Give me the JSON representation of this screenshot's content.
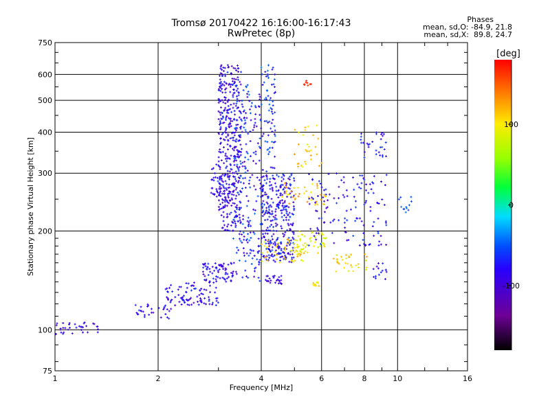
{
  "title": "Tromsø 20170422 16:16:00-16:17:43",
  "subtitle": "RwPretec (8p)",
  "stats": {
    "heading": "Phases",
    "line_o": "mean, sd,O: -84.9, 21.8",
    "line_x": "mean, sd,X:  89.8, 24.7"
  },
  "chart_data": {
    "type": "scatter",
    "title": "Tromsø 20170422 16:16:00-16:17:43",
    "subtitle": "RwPretec (8p)",
    "xlabel": "Frequency [MHz]",
    "ylabel": "Stationary phase Virtual Height [km]",
    "x_scale": "log2",
    "y_scale": "log",
    "xlim": [
      1,
      16
    ],
    "ylim": [
      75,
      750
    ],
    "x_ticks": [
      "1",
      "2",
      "4",
      "6",
      "8",
      "10",
      "16"
    ],
    "x_tick_values": [
      1,
      2,
      4,
      6,
      8,
      10,
      16
    ],
    "y_ticks": [
      "75",
      "100",
      "200",
      "300",
      "400",
      "500",
      "600",
      "750"
    ],
    "y_tick_values": [
      75,
      100,
      200,
      300,
      400,
      500,
      600,
      750
    ],
    "grid": true,
    "colorbar": {
      "label": "[deg]",
      "range": [
        -180,
        180
      ],
      "ticks": [
        "100",
        "0",
        "-100"
      ],
      "tick_values": [
        100,
        0,
        -100
      ],
      "colormap": "rainbow"
    },
    "clusters": [
      {
        "f": [
          1.0,
          1.35
        ],
        "h": [
          97,
          106
        ],
        "phase": [
          -110,
          -70
        ],
        "n": 35
      },
      {
        "f": [
          1.7,
          2.2
        ],
        "h": [
          108,
          120
        ],
        "phase": [
          -110,
          -60
        ],
        "n": 30
      },
      {
        "f": [
          2.1,
          3.0
        ],
        "h": [
          118,
          140
        ],
        "phase": [
          -110,
          -60
        ],
        "n": 90
      },
      {
        "f": [
          2.7,
          3.3
        ],
        "h": [
          140,
          160
        ],
        "phase": [
          -110,
          -60
        ],
        "n": 70
      },
      {
        "f": [
          2.85,
          3.05
        ],
        "h": [
          250,
          320
        ],
        "phase": [
          -100,
          -60
        ],
        "n": 30
      },
      {
        "f": [
          3.0,
          3.5
        ],
        "h": [
          200,
          640
        ],
        "phase": [
          -115,
          -60
        ],
        "n": 420
      },
      {
        "f": [
          3.3,
          4.0
        ],
        "h": [
          140,
          560
        ],
        "phase": [
          -110,
          -40
        ],
        "n": 230
      },
      {
        "f": [
          4.0,
          5.0
        ],
        "h": [
          160,
          300
        ],
        "phase": [
          -110,
          -50
        ],
        "n": 330
      },
      {
        "f": [
          4.0,
          4.4
        ],
        "h": [
          300,
          640
        ],
        "phase": [
          -100,
          -40
        ],
        "n": 70
      },
      {
        "f": [
          4.1,
          4.6
        ],
        "h": [
          138,
          146
        ],
        "phase": [
          -110,
          -70
        ],
        "n": 25
      },
      {
        "f": [
          4.0,
          5.4
        ],
        "h": [
          160,
          190
        ],
        "phase": [
          80,
          130
        ],
        "n": 55
      },
      {
        "f": [
          4.6,
          6.2
        ],
        "h": [
          240,
          280
        ],
        "phase": [
          90,
          140
        ],
        "n": 40
      },
      {
        "f": [
          5.0,
          6.2
        ],
        "h": [
          170,
          200
        ],
        "phase": [
          70,
          110
        ],
        "n": 45
      },
      {
        "f": [
          5.0,
          6.0
        ],
        "h": [
          300,
          420
        ],
        "phase": [
          90,
          140
        ],
        "n": 30
      },
      {
        "f": [
          5.3,
          5.6
        ],
        "h": [
          555,
          575
        ],
        "phase": [
          160,
          180
        ],
        "n": 8
      },
      {
        "f": [
          5.5,
          9.3
        ],
        "h": [
          180,
          300
        ],
        "phase": [
          -110,
          -50
        ],
        "n": 130
      },
      {
        "f": [
          5.6,
          5.9
        ],
        "h": [
          136,
          140
        ],
        "phase": [
          90,
          120
        ],
        "n": 12
      },
      {
        "f": [
          6.5,
          8.2
        ],
        "h": [
          150,
          170
        ],
        "phase": [
          80,
          130
        ],
        "n": 30
      },
      {
        "f": [
          7.8,
          9.3
        ],
        "h": [
          330,
          400
        ],
        "phase": [
          -100,
          -50
        ],
        "n": 30
      },
      {
        "f": [
          8.5,
          9.3
        ],
        "h": [
          140,
          160
        ],
        "phase": [
          -110,
          -60
        ],
        "n": 15
      },
      {
        "f": [
          10.0,
          11.0
        ],
        "h": [
          228,
          255
        ],
        "phase": [
          -60,
          -30
        ],
        "n": 12
      }
    ]
  }
}
